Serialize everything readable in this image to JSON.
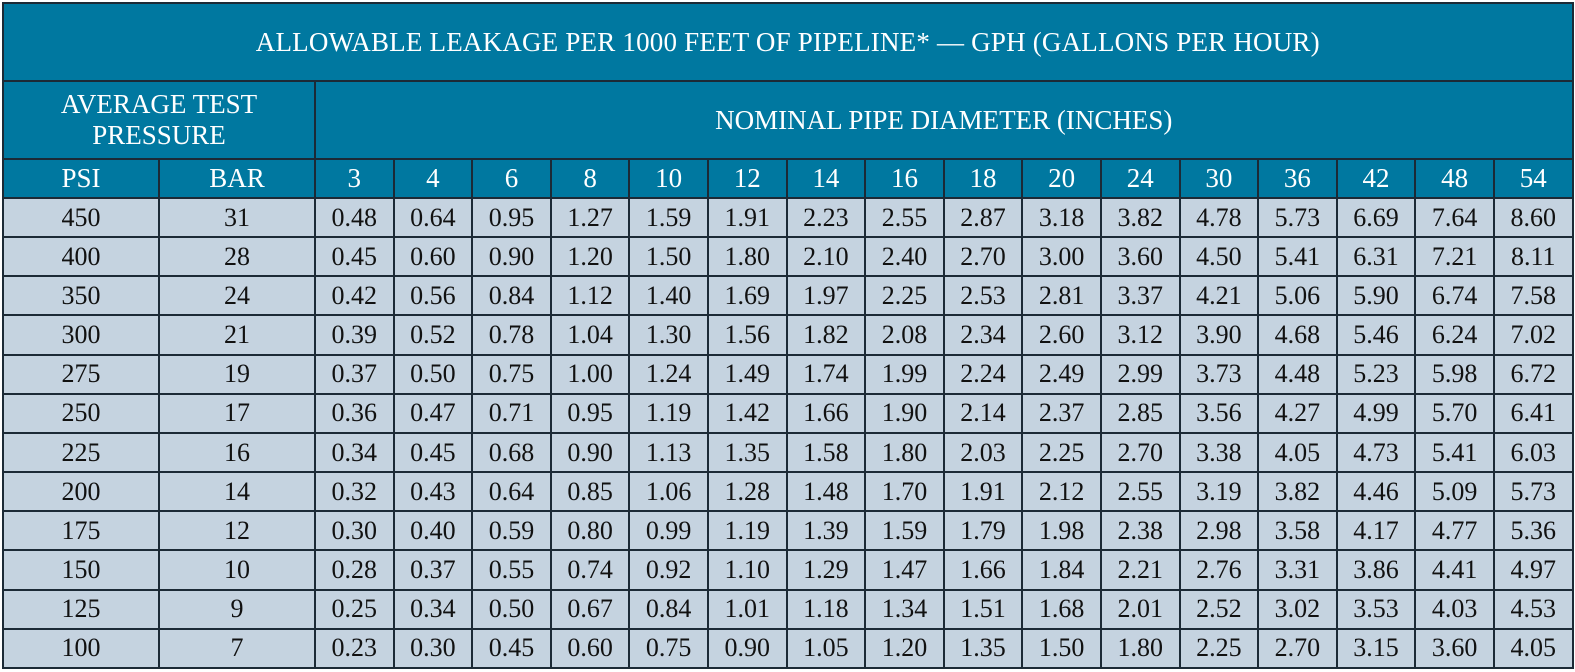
{
  "title": "ALLOWABLE LEAKAGE PER 1000 FEET OF PIPELINE* — GPH (GALLONS PER HOUR)",
  "pressure_group_label": "AVERAGE TEST PRESSURE",
  "diameter_group_label": "NOMINAL PIPE DIAMETER (INCHES)",
  "psi_label": "PSI",
  "bar_label": "BAR",
  "diameters": [
    "3",
    "4",
    "6",
    "8",
    "10",
    "12",
    "14",
    "16",
    "18",
    "20",
    "24",
    "30",
    "36",
    "42",
    "48",
    "54"
  ],
  "rows": [
    {
      "psi": "450",
      "bar": "31",
      "values": [
        "0.48",
        "0.64",
        "0.95",
        "1.27",
        "1.59",
        "1.91",
        "2.23",
        "2.55",
        "2.87",
        "3.18",
        "3.82",
        "4.78",
        "5.73",
        "6.69",
        "7.64",
        "8.60"
      ]
    },
    {
      "psi": "400",
      "bar": "28",
      "values": [
        "0.45",
        "0.60",
        "0.90",
        "1.20",
        "1.50",
        "1.80",
        "2.10",
        "2.40",
        "2.70",
        "3.00",
        "3.60",
        "4.50",
        "5.41",
        "6.31",
        "7.21",
        "8.11"
      ]
    },
    {
      "psi": "350",
      "bar": "24",
      "values": [
        "0.42",
        "0.56",
        "0.84",
        "1.12",
        "1.40",
        "1.69",
        "1.97",
        "2.25",
        "2.53",
        "2.81",
        "3.37",
        "4.21",
        "5.06",
        "5.90",
        "6.74",
        "7.58"
      ]
    },
    {
      "psi": "300",
      "bar": "21",
      "values": [
        "0.39",
        "0.52",
        "0.78",
        "1.04",
        "1.30",
        "1.56",
        "1.82",
        "2.08",
        "2.34",
        "2.60",
        "3.12",
        "3.90",
        "4.68",
        "5.46",
        "6.24",
        "7.02"
      ]
    },
    {
      "psi": "275",
      "bar": "19",
      "values": [
        "0.37",
        "0.50",
        "0.75",
        "1.00",
        "1.24",
        "1.49",
        "1.74",
        "1.99",
        "2.24",
        "2.49",
        "2.99",
        "3.73",
        "4.48",
        "5.23",
        "5.98",
        "6.72"
      ]
    },
    {
      "psi": "250",
      "bar": "17",
      "values": [
        "0.36",
        "0.47",
        "0.71",
        "0.95",
        "1.19",
        "1.42",
        "1.66",
        "1.90",
        "2.14",
        "2.37",
        "2.85",
        "3.56",
        "4.27",
        "4.99",
        "5.70",
        "6.41"
      ]
    },
    {
      "psi": "225",
      "bar": "16",
      "values": [
        "0.34",
        "0.45",
        "0.68",
        "0.90",
        "1.13",
        "1.35",
        "1.58",
        "1.80",
        "2.03",
        "2.25",
        "2.70",
        "3.38",
        "4.05",
        "4.73",
        "5.41",
        "6.03"
      ]
    },
    {
      "psi": "200",
      "bar": "14",
      "values": [
        "0.32",
        "0.43",
        "0.64",
        "0.85",
        "1.06",
        "1.28",
        "1.48",
        "1.70",
        "1.91",
        "2.12",
        "2.55",
        "3.19",
        "3.82",
        "4.46",
        "5.09",
        "5.73"
      ]
    },
    {
      "psi": "175",
      "bar": "12",
      "values": [
        "0.30",
        "0.40",
        "0.59",
        "0.80",
        "0.99",
        "1.19",
        "1.39",
        "1.59",
        "1.79",
        "1.98",
        "2.38",
        "2.98",
        "3.58",
        "4.17",
        "4.77",
        "5.36"
      ]
    },
    {
      "psi": "150",
      "bar": "10",
      "values": [
        "0.28",
        "0.37",
        "0.55",
        "0.74",
        "0.92",
        "1.10",
        "1.29",
        "1.47",
        "1.66",
        "1.84",
        "2.21",
        "2.76",
        "3.31",
        "3.86",
        "4.41",
        "4.97"
      ]
    },
    {
      "psi": "125",
      "bar": "9",
      "values": [
        "0.25",
        "0.34",
        "0.50",
        "0.67",
        "0.84",
        "1.01",
        "1.18",
        "1.34",
        "1.51",
        "1.68",
        "2.01",
        "2.52",
        "3.02",
        "3.53",
        "4.03",
        "4.53"
      ]
    },
    {
      "psi": "100",
      "bar": "7",
      "values": [
        "0.23",
        "0.30",
        "0.45",
        "0.60",
        "0.75",
        "0.90",
        "1.05",
        "1.20",
        "1.35",
        "1.50",
        "1.80",
        "2.25",
        "2.70",
        "3.15",
        "3.60",
        "4.05"
      ]
    }
  ]
}
